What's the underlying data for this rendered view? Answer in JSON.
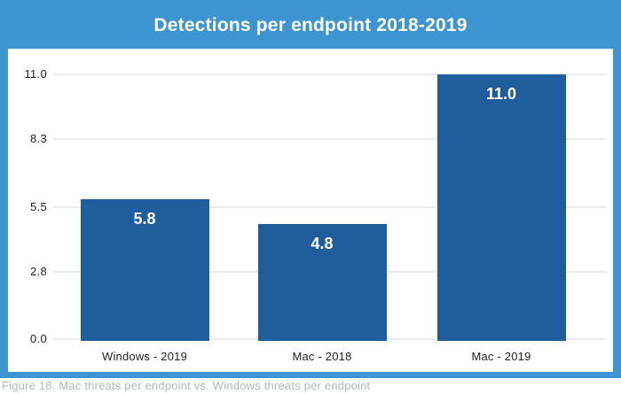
{
  "title": "Detections per endpoint 2018-2019",
  "caption": "Figure 18. Mac threats per endpoint vs. Windows threats per endpoint",
  "colors": {
    "frame_background": "#3d94d1",
    "panel_background": "#ffffff",
    "bar_fill": "#205d9d",
    "gridline": "#ececee",
    "axis_text": "#202226",
    "title_text": "#ffffff",
    "value_label_text": "#ffffff",
    "caption_text": "#b0b8bc"
  },
  "chart_data": {
    "type": "bar",
    "title": "Detections per endpoint 2018-2019",
    "categories": [
      "Windows - 2019",
      "Mac - 2018",
      "Mac - 2019"
    ],
    "values": [
      5.8,
      4.8,
      11.0
    ],
    "value_labels": [
      "5.8",
      "4.8",
      "11.0"
    ],
    "xlabel": "",
    "ylabel": "",
    "ylim": [
      0,
      11
    ],
    "yticks": [
      0.0,
      2.8,
      5.5,
      8.3,
      11.0
    ],
    "ytick_labels": [
      "0.0",
      "2.8",
      "5.5",
      "8.3",
      "11.0"
    ],
    "grid": true,
    "legend": false,
    "value_labels_position": "inside-top",
    "bar_count": 3
  }
}
